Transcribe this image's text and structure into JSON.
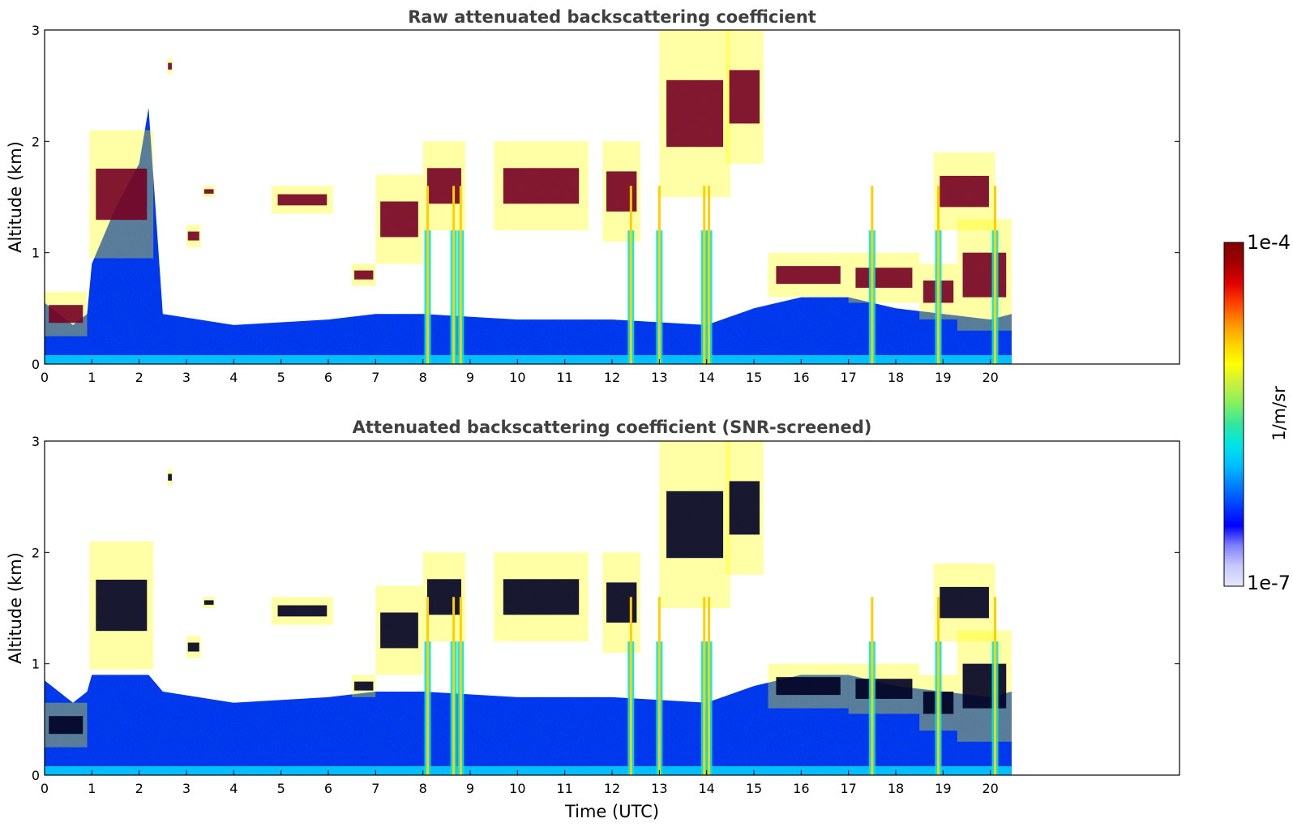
{
  "colors": {
    "colormap": [
      "#e6e6ff",
      "#c8c8ff",
      "#8080ff",
      "#0000ff",
      "#0040ff",
      "#0080ff",
      "#00bfff",
      "#00e5e5",
      "#33e6a0",
      "#80f060",
      "#c8f040",
      "#ffff00",
      "#ffd000",
      "#ff9000",
      "#ff4000",
      "#e00000",
      "#a00000",
      "#800000"
    ],
    "background": "#ffffff",
    "axis": "#000000"
  },
  "chart_data": [
    {
      "type": "heatmap",
      "title": "Raw attenuated backscattering coefficient",
      "xlabel": "",
      "ylabel": "Altitude (km)",
      "xlim": [
        0,
        24
      ],
      "ylim": [
        0,
        3
      ],
      "xticks": [
        "0",
        "1",
        "2",
        "3",
        "4",
        "5",
        "6",
        "7",
        "8",
        "9",
        "10",
        "11",
        "12",
        "13",
        "14",
        "15",
        "16",
        "17",
        "18",
        "19",
        "20"
      ],
      "yticks": [
        "0",
        "1",
        "2",
        "3"
      ],
      "data_end_time": 20.45,
      "screened": false,
      "boundary_layer_top_km": [
        [
          0.0,
          0.55
        ],
        [
          0.3,
          0.45
        ],
        [
          0.6,
          0.35
        ],
        [
          0.9,
          0.45
        ],
        [
          1.0,
          0.9
        ],
        [
          1.5,
          1.4
        ],
        [
          2.0,
          1.8
        ],
        [
          2.2,
          2.3
        ],
        [
          2.5,
          0.45
        ],
        [
          4.0,
          0.35
        ],
        [
          6.0,
          0.4
        ],
        [
          7.0,
          0.45
        ],
        [
          8.0,
          0.45
        ],
        [
          10.0,
          0.4
        ],
        [
          12.0,
          0.4
        ],
        [
          14.0,
          0.35
        ],
        [
          15.0,
          0.5
        ],
        [
          16.0,
          0.6
        ],
        [
          17.0,
          0.6
        ],
        [
          18.0,
          0.5
        ],
        [
          19.0,
          0.45
        ],
        [
          20.0,
          0.4
        ],
        [
          20.45,
          0.45
        ]
      ],
      "cloud_layers_km": [
        {
          "t0": 0.0,
          "t1": 0.9,
          "z0": 0.25,
          "z1": 0.65
        },
        {
          "t0": 0.95,
          "t1": 2.3,
          "z0": 0.95,
          "z1": 2.1
        },
        {
          "t0": 2.6,
          "t1": 2.7,
          "z0": 2.6,
          "z1": 2.75
        },
        {
          "t0": 3.0,
          "t1": 3.3,
          "z0": 1.05,
          "z1": 1.25
        },
        {
          "t0": 3.35,
          "t1": 3.6,
          "z0": 1.5,
          "z1": 1.6
        },
        {
          "t0": 4.8,
          "t1": 6.1,
          "z0": 1.35,
          "z1": 1.6
        },
        {
          "t0": 6.5,
          "t1": 7.0,
          "z0": 0.7,
          "z1": 0.9
        },
        {
          "t0": 7.0,
          "t1": 8.0,
          "z0": 0.9,
          "z1": 1.7
        },
        {
          "t0": 8.0,
          "t1": 8.9,
          "z0": 1.2,
          "z1": 2.0
        },
        {
          "t0": 9.5,
          "t1": 11.5,
          "z0": 1.2,
          "z1": 2.0
        },
        {
          "t0": 11.8,
          "t1": 12.6,
          "z0": 1.1,
          "z1": 2.0
        },
        {
          "t0": 13.0,
          "t1": 14.5,
          "z0": 1.5,
          "z1": 3.0
        },
        {
          "t0": 14.4,
          "t1": 15.2,
          "z0": 1.8,
          "z1": 3.0
        },
        {
          "t0": 15.3,
          "t1": 17.0,
          "z0": 0.6,
          "z1": 1.0
        },
        {
          "t0": 17.0,
          "t1": 18.5,
          "z0": 0.55,
          "z1": 1.0
        },
        {
          "t0": 18.5,
          "t1": 19.3,
          "z0": 0.4,
          "z1": 0.9
        },
        {
          "t0": 19.3,
          "t1": 20.45,
          "z0": 0.3,
          "z1": 1.3
        },
        {
          "t0": 18.8,
          "t1": 20.1,
          "z0": 1.2,
          "z1": 1.9
        }
      ],
      "precipitation_shafts_h": [
        8.1,
        8.65,
        8.8,
        12.4,
        13.0,
        13.95,
        14.05,
        17.5,
        18.9,
        20.1
      ]
    },
    {
      "type": "heatmap",
      "title": "Attenuated backscattering coefficient (SNR-screened)",
      "xlabel": "Time (UTC)",
      "ylabel": "Altitude (km)",
      "xlim": [
        0,
        24
      ],
      "ylim": [
        0,
        3
      ],
      "xticks": [
        "0",
        "1",
        "2",
        "3",
        "4",
        "5",
        "6",
        "7",
        "8",
        "9",
        "10",
        "11",
        "12",
        "13",
        "14",
        "15",
        "16",
        "17",
        "18",
        "19",
        "20"
      ],
      "yticks": [
        "0",
        "1",
        "2",
        "3"
      ],
      "data_end_time": 20.45,
      "screened": true
    }
  ],
  "colorbar": {
    "label": "1/m/sr",
    "max_label": "1e-4",
    "min_label": "1e-7",
    "scale": "log",
    "range": [
      1e-07,
      0.0001
    ]
  }
}
